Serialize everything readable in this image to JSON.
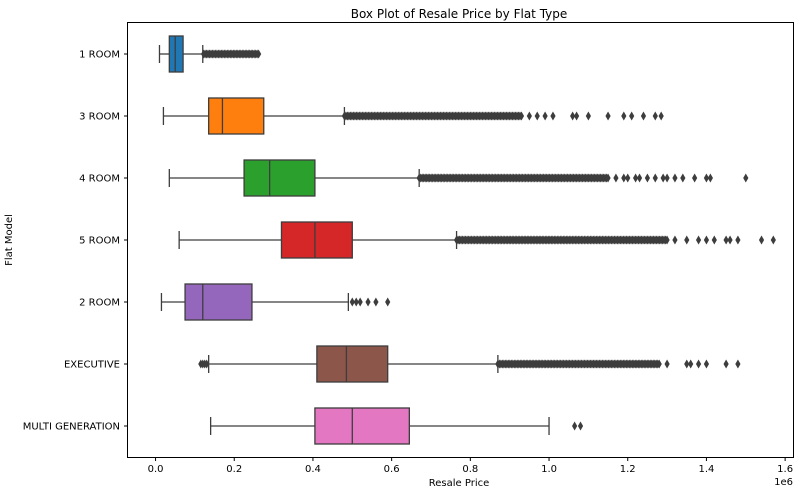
{
  "chart_data": {
    "type": "box",
    "title": "Box Plot of Resale Price by Flat Type",
    "xlabel": "Resale Price",
    "ylabel": "Flat Model",
    "x_scale_label": "1e6",
    "xlim": [
      -0.07,
      1.62
    ],
    "xticks": [
      0.0,
      0.2,
      0.4,
      0.6,
      0.8,
      1.0,
      1.2,
      1.4,
      1.6
    ],
    "xtick_labels": [
      "0.0",
      "0.2",
      "0.4",
      "0.6",
      "0.8",
      "1.0",
      "1.2",
      "1.4",
      "1.6"
    ],
    "grid": false,
    "categories": [
      "1 ROOM",
      "3 ROOM",
      "4 ROOM",
      "5 ROOM",
      "2 ROOM",
      "EXECUTIVE",
      "MULTI GENERATION"
    ],
    "series": [
      {
        "category": "1 ROOM",
        "color": "#1f77b4",
        "whisker_low": 0.01,
        "q1": 0.035,
        "median": 0.05,
        "q3": 0.07,
        "whisker_high": 0.12,
        "flier_range": [
          0.122,
          0.262
        ],
        "fliers": []
      },
      {
        "category": "3 ROOM",
        "color": "#ff7f0e",
        "whisker_low": 0.02,
        "q1": 0.135,
        "median": 0.17,
        "q3": 0.275,
        "whisker_high": 0.48,
        "flier_range": [
          0.48,
          0.93
        ],
        "fliers": [
          0.95,
          0.97,
          0.99,
          1.01,
          1.06,
          1.07,
          1.1,
          1.15,
          1.19,
          1.21,
          1.24,
          1.27,
          1.285
        ]
      },
      {
        "category": "4 ROOM",
        "color": "#2ca02c",
        "whisker_low": 0.035,
        "q1": 0.225,
        "median": 0.29,
        "q3": 0.405,
        "whisker_high": 0.67,
        "flier_range": [
          0.67,
          1.15
        ],
        "fliers": [
          1.17,
          1.19,
          1.2,
          1.22,
          1.23,
          1.25,
          1.27,
          1.29,
          1.3,
          1.32,
          1.34,
          1.37,
          1.4,
          1.41,
          1.5
        ]
      },
      {
        "category": "5 ROOM",
        "color": "#d62728",
        "whisker_low": 0.06,
        "q1": 0.32,
        "median": 0.405,
        "q3": 0.5,
        "whisker_high": 0.765,
        "flier_range": [
          0.765,
          1.3
        ],
        "fliers": [
          1.32,
          1.35,
          1.38,
          1.4,
          1.42,
          1.45,
          1.46,
          1.48,
          1.54,
          1.57
        ]
      },
      {
        "category": "2 ROOM",
        "color": "#9467bd",
        "whisker_low": 0.015,
        "q1": 0.075,
        "median": 0.12,
        "q3": 0.245,
        "whisker_high": 0.49,
        "flier_range": [],
        "fliers": [
          0.5,
          0.51,
          0.52,
          0.54,
          0.56,
          0.59
        ]
      },
      {
        "category": "EXECUTIVE",
        "color": "#8c564b",
        "whisker_low": 0.135,
        "q1": 0.41,
        "median": 0.485,
        "q3": 0.59,
        "whisker_high": 0.87,
        "flier_range": [
          0.87,
          1.28
        ],
        "fliers": [
          0.115,
          0.12,
          0.125,
          0.13,
          1.3,
          1.35,
          1.36,
          1.38,
          1.4,
          1.45,
          1.48
        ]
      },
      {
        "category": "MULTI GENERATION",
        "color": "#e377c2",
        "whisker_low": 0.14,
        "q1": 0.405,
        "median": 0.5,
        "q3": 0.645,
        "whisker_high": 1.0,
        "flier_range": [],
        "fliers": [
          1.065,
          1.08
        ]
      }
    ]
  }
}
